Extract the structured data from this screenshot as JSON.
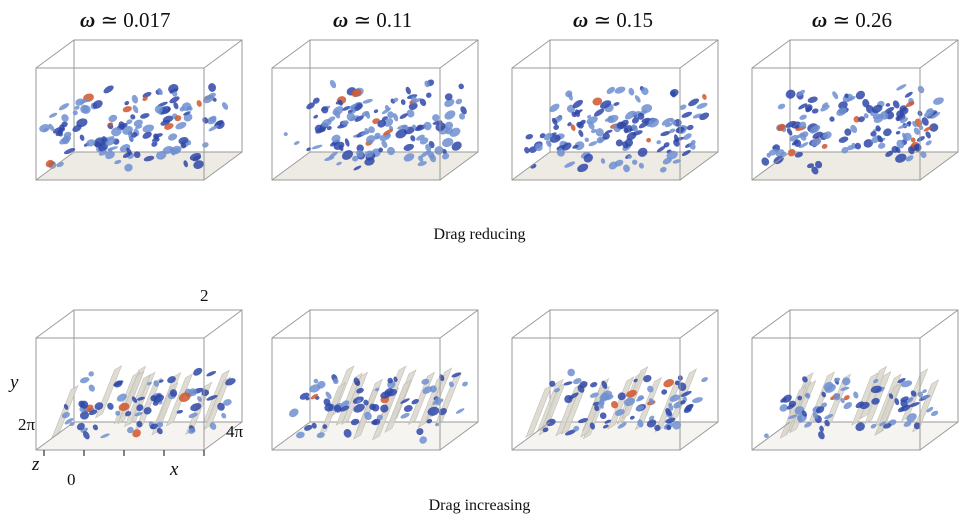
{
  "omega_symbol": "ω",
  "approx_symbol": "≃",
  "columns": [
    {
      "omega": "0.017"
    },
    {
      "omega": "0.11"
    },
    {
      "omega": "0.15"
    },
    {
      "omega": "0.26"
    }
  ],
  "rows": [
    {
      "caption": "Drag reducing"
    },
    {
      "caption": "Drag increasing"
    }
  ],
  "axis_labels": {
    "y_axis": "y",
    "y_top": "2",
    "z_axis": "z",
    "z_max": "2π",
    "origin": "0",
    "x_axis": "x",
    "x_max": "4π"
  },
  "colors": {
    "box_edge": "#9a9a9a",
    "structure_blue": "#2f48a8",
    "structure_light_blue": "#6e8fd0",
    "structure_red": "#d1562b",
    "wall_streak": "#d9d6cc",
    "floor": "#ece9e1"
  }
}
